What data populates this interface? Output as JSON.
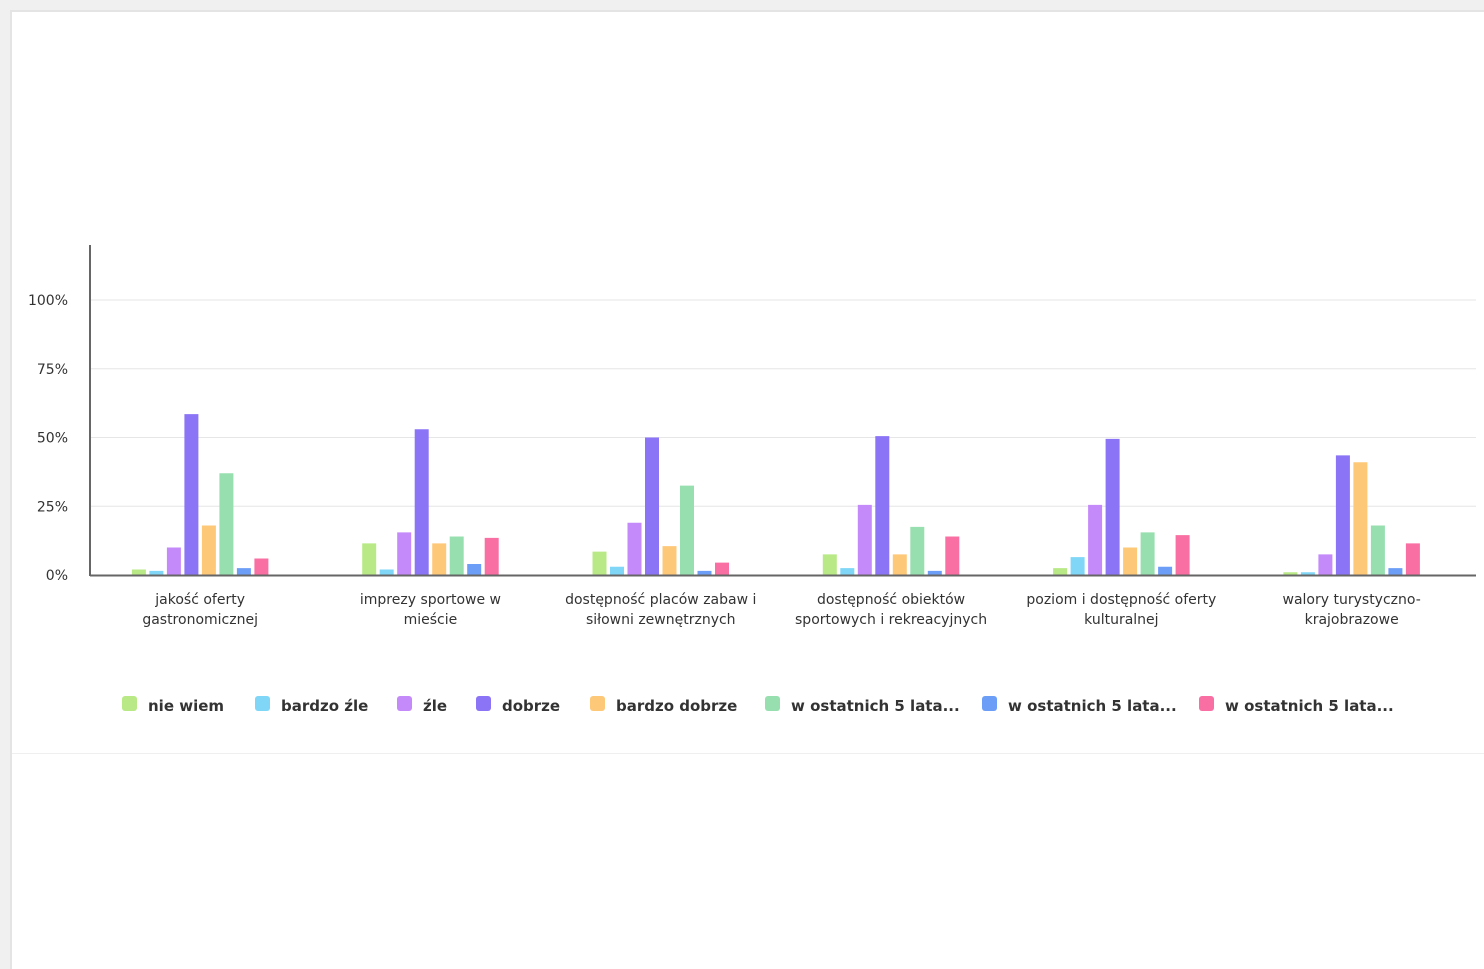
{
  "chart_data": {
    "type": "bar",
    "categories": [
      [
        "jakość oferty",
        "gastronomicznej"
      ],
      [
        "imprezy sportowe w",
        "mieście"
      ],
      [
        "dostępność placów zabaw i",
        "siłowni zewnętrznych"
      ],
      [
        "dostępność obiektów",
        "sportowych i rekreacyjnych"
      ],
      [
        "poziom i dostępność oferty",
        "kulturalnej"
      ],
      [
        "walory turystyczno-",
        "krajobrazowe"
      ]
    ],
    "series": [
      {
        "name": "nie wiem",
        "color": "#b8e986",
        "values": [
          2,
          11.5,
          8.5,
          7.5,
          2.5,
          1
        ]
      },
      {
        "name": "bardzo źle",
        "color": "#7fd6f7",
        "values": [
          1.5,
          2,
          3,
          2.5,
          6.5,
          1
        ]
      },
      {
        "name": "źle",
        "color": "#c58af9",
        "values": [
          10,
          15.5,
          19,
          25.5,
          25.5,
          7.5
        ]
      },
      {
        "name": "dobrze",
        "color": "#8b74f5",
        "values": [
          58.5,
          53,
          50,
          50.5,
          49.5,
          43.5
        ]
      },
      {
        "name": "bardzo dobrze",
        "color": "#fec879",
        "values": [
          18,
          11.5,
          10.5,
          7.5,
          10,
          41
        ]
      },
      {
        "name": "w ostatnich 5 lata...",
        "color": "#98dfb0",
        "values": [
          37,
          14,
          32.5,
          17.5,
          15.5,
          18
        ]
      },
      {
        "name": "w ostatnich 5 lata...",
        "color": "#6d9ef7",
        "values": [
          2.5,
          4,
          1.5,
          1.5,
          3,
          2.5
        ]
      },
      {
        "name": "w ostatnich 5 lata...",
        "color": "#fa6fa3",
        "values": [
          6,
          13.5,
          4.5,
          14,
          14.5,
          11.5
        ]
      }
    ],
    "yticks": [
      {
        "value": 0,
        "label": "0%"
      },
      {
        "value": 25,
        "label": "25%"
      },
      {
        "value": 50,
        "label": "50%"
      },
      {
        "value": 75,
        "label": "75%"
      },
      {
        "value": 100,
        "label": "100%"
      }
    ],
    "ylim": [
      0,
      120
    ],
    "grid": true,
    "legend_position": "bottom"
  }
}
